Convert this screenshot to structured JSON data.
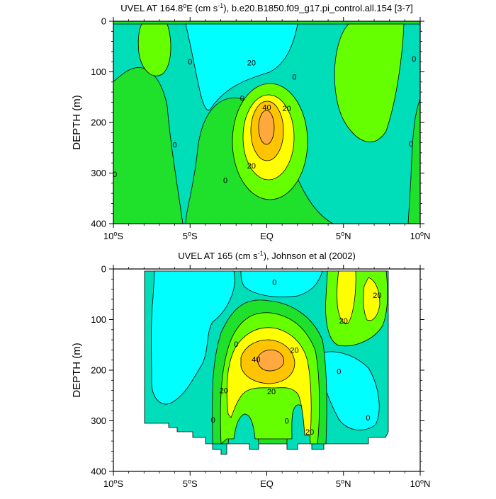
{
  "palette": {
    "neg": "#00ffff",
    "low": "#00ddb9",
    "base": "#1fe02b",
    "mid": "#66ff00",
    "high": "#ffff00",
    "core": "#ffc400",
    "peak": "#ffa93f",
    "line": "#000000"
  },
  "chart_data": [
    {
      "type": "contour",
      "title_main": "UVEL AT 164.8",
      "title_sup_deg": "o",
      "title_after_deg": "E (cm s",
      "title_sup_unit": "-1",
      "title_rest": "), b.e20.B1850.f09_g17.pi_control.all.154 [3-7]",
      "ylabel": "DEPTH (m)",
      "ylim": [
        0,
        400
      ],
      "xlim": [
        -10,
        10
      ],
      "yticks": [
        {
          "value": 0,
          "label": "0"
        },
        {
          "value": 100,
          "label": "100"
        },
        {
          "value": 200,
          "label": "200"
        },
        {
          "value": 300,
          "label": "300"
        },
        {
          "value": 400,
          "label": "400"
        }
      ],
      "xticks": [
        {
          "value": -10,
          "num": "10",
          "sup": "o",
          "hem": "S"
        },
        {
          "value": -5,
          "num": "5",
          "sup": "o",
          "hem": "S"
        },
        {
          "value": 0,
          "num": "EQ",
          "sup": "",
          "hem": ""
        },
        {
          "value": 5,
          "num": "5",
          "sup": "o",
          "hem": "N"
        },
        {
          "value": 10,
          "num": "10",
          "sup": "o",
          "hem": "N"
        }
      ],
      "contour_labels": [
        {
          "text": "20",
          "lon": -1.0,
          "depth": 82
        },
        {
          "text": "0",
          "lon": -5.0,
          "depth": 80
        },
        {
          "text": "0",
          "lon": 9.6,
          "depth": 74
        },
        {
          "text": "0",
          "lon": 1.8,
          "depth": 110
        },
        {
          "text": "0",
          "lon": -1.6,
          "depth": 152
        },
        {
          "text": "40",
          "lon": 0.0,
          "depth": 170
        },
        {
          "text": "20",
          "lon": 1.3,
          "depth": 172
        },
        {
          "text": "0",
          "lon": -6.0,
          "depth": 244
        },
        {
          "text": "0",
          "lon": 9.4,
          "depth": 242
        },
        {
          "text": "20",
          "lon": -1.0,
          "depth": 285
        },
        {
          "text": "0",
          "lon": -2.7,
          "depth": 314
        },
        {
          "text": "0",
          "lon": -9.9,
          "depth": 302
        }
      ]
    },
    {
      "type": "contour",
      "title_main": "UVEL AT 165 (cm s",
      "title_sup_unit": "-1",
      "title_rest": "), Johnson et al (2002)",
      "ylabel": "DEPTH (m)",
      "ylim": [
        0,
        400
      ],
      "xlim": [
        -10,
        10
      ],
      "data_extent": {
        "lon": [
          -8,
          8
        ],
        "depth_top": 8
      },
      "yticks": [
        {
          "value": 0,
          "label": "0"
        },
        {
          "value": 100,
          "label": "100"
        },
        {
          "value": 200,
          "label": "200"
        },
        {
          "value": 300,
          "label": "300"
        },
        {
          "value": 400,
          "label": "400"
        }
      ],
      "xticks": [
        {
          "value": -10,
          "num": "10",
          "sup": "o",
          "hem": "S"
        },
        {
          "value": -5,
          "num": "5",
          "sup": "o",
          "hem": "S"
        },
        {
          "value": 0,
          "num": "EQ",
          "sup": "",
          "hem": ""
        },
        {
          "value": 5,
          "num": "5",
          "sup": "o",
          "hem": "N"
        },
        {
          "value": 10,
          "num": "10",
          "sup": "o",
          "hem": "N"
        }
      ],
      "contour_labels": [
        {
          "text": "0",
          "lon": 0.5,
          "depth": 26
        },
        {
          "text": "20",
          "lon": 7.2,
          "depth": 52
        },
        {
          "text": "20",
          "lon": 5.0,
          "depth": 102
        },
        {
          "text": "0",
          "lon": -2.0,
          "depth": 148
        },
        {
          "text": "20",
          "lon": 1.8,
          "depth": 160
        },
        {
          "text": "40",
          "lon": -0.7,
          "depth": 178
        },
        {
          "text": "0",
          "lon": 4.7,
          "depth": 202
        },
        {
          "text": "20",
          "lon": -2.8,
          "depth": 240
        },
        {
          "text": "20",
          "lon": 0.3,
          "depth": 242
        },
        {
          "text": "0",
          "lon": -3.5,
          "depth": 298
        },
        {
          "text": "0",
          "lon": 1.3,
          "depth": 300
        },
        {
          "text": "0",
          "lon": 6.6,
          "depth": 294
        },
        {
          "text": "20",
          "lon": 2.8,
          "depth": 322
        }
      ]
    }
  ]
}
